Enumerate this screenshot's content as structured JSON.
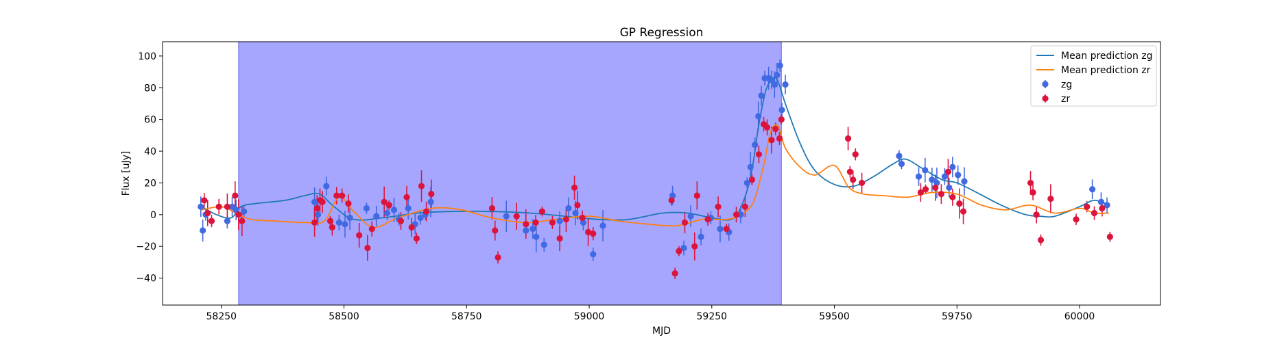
{
  "chart_data": {
    "type": "scatter",
    "title": "GP Regression",
    "xlabel": "MJD",
    "ylabel": "Flux [uJy]",
    "xlim": [
      58130,
      60165
    ],
    "ylim": [
      -57,
      109
    ],
    "xticks": [
      58250,
      58500,
      58750,
      59000,
      59250,
      59500,
      59750,
      60000
    ],
    "yticks": [
      -40,
      -20,
      0,
      20,
      40,
      60,
      80,
      100
    ],
    "grid": false,
    "legend_position": "top-right",
    "shaded_region": {
      "x0": 58285,
      "x1": 59392,
      "color": "#a6a6ff"
    },
    "colors": {
      "zg_points": "#4169e1",
      "zr_points": "#dc143c",
      "zg_line": "#1f77b4",
      "zr_line": "#ff7f0e"
    },
    "legend": [
      {
        "label": "Mean prediction zg",
        "kind": "line",
        "color": "#1f77b4"
      },
      {
        "label": "Mean prediction zr",
        "kind": "line",
        "color": "#ff7f0e"
      },
      {
        "label": "zg",
        "kind": "point",
        "color": "#4169e1"
      },
      {
        "label": "zr",
        "kind": "point",
        "color": "#dc143c"
      }
    ],
    "lines": [
      {
        "name": "Mean prediction zg",
        "color": "#1f77b4",
        "x": [
          58210,
          58240,
          58270,
          58290,
          58320,
          58380,
          58420,
          58450,
          58480,
          58520,
          58580,
          58650,
          58720,
          58800,
          58880,
          58950,
          59020,
          59080,
          59150,
          59200,
          59250,
          59290,
          59310,
          59330,
          59345,
          59360,
          59375,
          59385,
          59400,
          59430,
          59460,
          59500,
          59540,
          59580,
          59620,
          59645,
          59680,
          59720,
          59750,
          59790,
          59840,
          59890,
          59920,
          59950,
          60000,
          60030,
          60060
        ],
        "y": [
          5,
          0,
          -2,
          5,
          7,
          9,
          12,
          13,
          5,
          -3,
          -2,
          1,
          2,
          2,
          1,
          -1,
          -3,
          -3,
          1,
          1,
          -2,
          -3,
          5,
          25,
          55,
          78,
          86,
          84,
          70,
          45,
          28,
          19,
          18,
          24,
          32,
          35,
          29,
          22,
          20,
          14,
          6,
          0,
          -1,
          -1,
          5,
          9,
          6
        ]
      },
      {
        "name": "Mean prediction zr",
        "color": "#ff7f0e",
        "x": [
          58210,
          58250,
          58280,
          58310,
          58360,
          58420,
          58460,
          58490,
          58520,
          58560,
          58610,
          58680,
          58740,
          58800,
          58870,
          58930,
          59000,
          59060,
          59120,
          59180,
          59230,
          59280,
          59310,
          59335,
          59355,
          59370,
          59385,
          59400,
          59430,
          59460,
          59500,
          59530,
          59560,
          59600,
          59650,
          59700,
          59750,
          59800,
          59850,
          59900,
          59950,
          60000,
          60030,
          60060
        ],
        "y": [
          3,
          5,
          1,
          -3,
          -4,
          -5,
          -4,
          11,
          2,
          -8,
          -2,
          4,
          3,
          -2,
          -5,
          -3,
          -1,
          -4,
          -6,
          -7,
          -3,
          -3,
          0,
          8,
          30,
          52,
          56,
          42,
          30,
          25,
          31,
          17,
          13,
          12,
          11,
          14,
          13,
          6,
          3,
          6,
          1,
          4,
          1,
          1
        ]
      }
    ],
    "series": [
      {
        "name": "zg",
        "color": "#4169e1",
        "x": [
          58208,
          58212,
          58218,
          58262,
          58272,
          58280,
          58296,
          58440,
          58447,
          58464,
          58490,
          58502,
          58512,
          58546,
          58566,
          58588,
          58602,
          58612,
          58631,
          58645,
          58656,
          58666,
          58677,
          58831,
          58871,
          58885,
          58892,
          58908,
          58940,
          58958,
          58972,
          58988,
          59008,
          59028,
          59170,
          59193,
          59207,
          59228,
          59248,
          59267,
          59285,
          59309,
          59322,
          59329,
          59338,
          59345,
          59351,
          59358,
          59366,
          59372,
          59378,
          59383,
          59389,
          59393,
          59400,
          59632,
          59637,
          59672,
          59685,
          59699,
          59709,
          59725,
          59734,
          59741,
          59752,
          59765,
          60026,
          60044,
          60056
        ],
        "y": [
          5,
          -10,
          0,
          -4,
          5,
          3,
          2,
          8,
          0,
          18,
          -5,
          -6,
          -2,
          4,
          -1,
          1,
          3,
          -3,
          4,
          -6,
          -2,
          0,
          8,
          -1,
          -10,
          -9,
          -14,
          -19,
          -4,
          4,
          1,
          -5,
          -25,
          -7,
          12,
          -21,
          -1,
          -14,
          -2,
          -9,
          -11,
          0,
          20,
          30,
          44,
          62,
          75,
          86,
          86,
          85,
          82,
          88,
          94,
          66,
          82,
          37,
          32,
          24,
          28,
          22,
          20,
          24,
          17,
          30,
          25,
          21,
          16,
          8,
          6
        ]
      },
      {
        "name": "zr",
        "color": "#dc143c",
        "x": [
          58215,
          58222,
          58230,
          58245,
          58262,
          58278,
          58285,
          58292,
          58440,
          58445,
          58451,
          58456,
          58472,
          58476,
          58485,
          58496,
          58509,
          58531,
          58548,
          58557,
          58582,
          58592,
          58616,
          58628,
          58638,
          58648,
          58658,
          58668,
          58678,
          58802,
          58808,
          58814,
          58852,
          58871,
          58891,
          58904,
          58925,
          58940,
          58953,
          58970,
          58976,
          58986,
          58998,
          59008,
          59168,
          59175,
          59183,
          59195,
          59215,
          59220,
          59242,
          59263,
          59280,
          59300,
          59318,
          59332,
          59346,
          59356,
          59363,
          59372,
          59380,
          59388,
          59392,
          59528,
          59532,
          59538,
          59543,
          59556,
          59676,
          59686,
          59706,
          59718,
          59732,
          59741,
          59755,
          59763,
          59900,
          59905,
          59912,
          59921,
          59941,
          59993,
          60015,
          60030,
          60046,
          60062
        ],
        "y": [
          9,
          1,
          -4,
          5,
          5,
          12,
          0,
          -4,
          -5,
          4,
          9,
          8,
          -4,
          -8,
          12,
          12,
          7,
          -13,
          -21,
          -9,
          8,
          6,
          -4,
          11,
          -8,
          -15,
          18,
          2,
          13,
          4,
          -10,
          -27,
          -1,
          -6,
          -5,
          2,
          -5,
          -15,
          -3,
          17,
          6,
          -2,
          -11,
          -12,
          9,
          -37,
          -23,
          -5,
          -20,
          12,
          -3,
          5,
          -9,
          0,
          5,
          22,
          38,
          57,
          55,
          47,
          54,
          48,
          60,
          48,
          27,
          22,
          38,
          20,
          14,
          16,
          17,
          13,
          27,
          11,
          7,
          2,
          20,
          14,
          0,
          -16,
          10,
          -3,
          5,
          1,
          4,
          -14
        ]
      }
    ]
  }
}
